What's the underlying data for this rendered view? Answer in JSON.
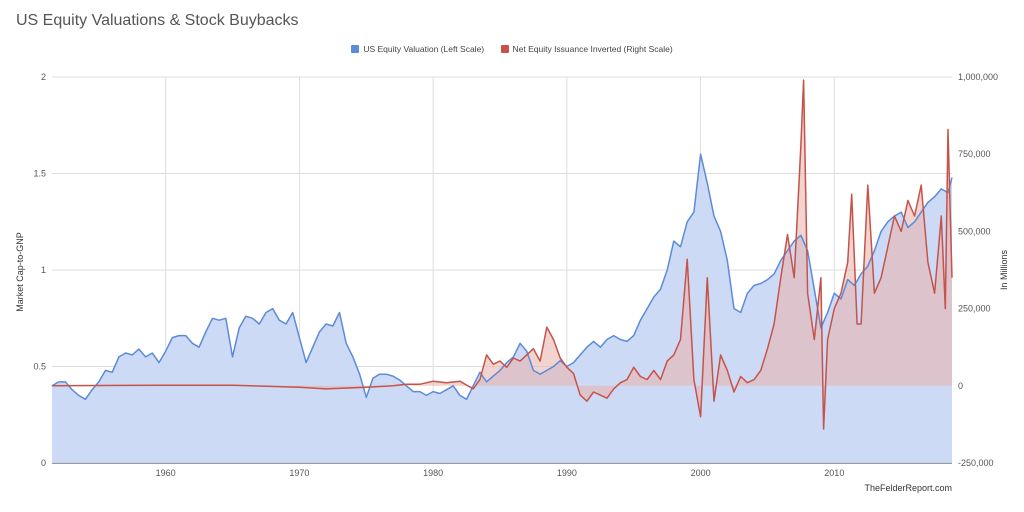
{
  "chart_data": {
    "type": "area",
    "title": "US Equity Valuations & Stock Buybacks",
    "ylabel": "Market Cap-to-GNP",
    "ylabel_right": "In Millions",
    "credit": "TheFelderReport.com",
    "legend_position": "top",
    "grid": true,
    "xlim": [
      1951.5,
      2018.8
    ],
    "ylim": [
      0,
      2
    ],
    "ylim_right": [
      -250000,
      1000000
    ],
    "x_ticks": [
      "1960",
      "1970",
      "1980",
      "1990",
      "2000",
      "2010"
    ],
    "y_ticks_left": [
      "0",
      "0.5",
      "1",
      "1.5",
      "2"
    ],
    "y_ticks_right": [
      "-250,000",
      "0",
      "250,000",
      "500,000",
      "750,000",
      "1,000,000"
    ],
    "series": [
      {
        "name": "US Equity Valuation (Left Scale)",
        "axis": "left",
        "color": "#5b8bd9",
        "fill": "#c9d8f4",
        "points": [
          [
            1951.5,
            0.4
          ],
          [
            1952,
            0.42
          ],
          [
            1952.5,
            0.42
          ],
          [
            1953,
            0.38
          ],
          [
            1953.5,
            0.35
          ],
          [
            1954,
            0.33
          ],
          [
            1954.5,
            0.38
          ],
          [
            1955,
            0.42
          ],
          [
            1955.5,
            0.48
          ],
          [
            1956,
            0.47
          ],
          [
            1956.5,
            0.55
          ],
          [
            1957,
            0.57
          ],
          [
            1957.5,
            0.56
          ],
          [
            1958,
            0.59
          ],
          [
            1958.5,
            0.55
          ],
          [
            1959,
            0.57
          ],
          [
            1959.5,
            0.52
          ],
          [
            1960,
            0.58
          ],
          [
            1960.5,
            0.65
          ],
          [
            1961,
            0.66
          ],
          [
            1961.5,
            0.66
          ],
          [
            1962,
            0.62
          ],
          [
            1962.5,
            0.6
          ],
          [
            1963,
            0.68
          ],
          [
            1963.5,
            0.75
          ],
          [
            1964,
            0.74
          ],
          [
            1964.5,
            0.75
          ],
          [
            1965,
            0.55
          ],
          [
            1965.5,
            0.7
          ],
          [
            1966,
            0.76
          ],
          [
            1966.5,
            0.75
          ],
          [
            1967,
            0.72
          ],
          [
            1967.5,
            0.78
          ],
          [
            1968,
            0.8
          ],
          [
            1968.5,
            0.74
          ],
          [
            1969,
            0.72
          ],
          [
            1969.5,
            0.78
          ],
          [
            1970,
            0.65
          ],
          [
            1970.5,
            0.52
          ],
          [
            1971,
            0.6
          ],
          [
            1971.5,
            0.68
          ],
          [
            1972,
            0.72
          ],
          [
            1972.5,
            0.71
          ],
          [
            1973,
            0.78
          ],
          [
            1973.5,
            0.62
          ],
          [
            1974,
            0.55
          ],
          [
            1974.5,
            0.46
          ],
          [
            1975,
            0.34
          ],
          [
            1975.5,
            0.44
          ],
          [
            1976,
            0.46
          ],
          [
            1976.5,
            0.46
          ],
          [
            1977,
            0.45
          ],
          [
            1977.5,
            0.43
          ],
          [
            1978,
            0.4
          ],
          [
            1978.5,
            0.37
          ],
          [
            1979,
            0.37
          ],
          [
            1979.5,
            0.35
          ],
          [
            1980,
            0.37
          ],
          [
            1980.5,
            0.36
          ],
          [
            1981,
            0.38
          ],
          [
            1981.5,
            0.4
          ],
          [
            1982,
            0.35
          ],
          [
            1982.5,
            0.33
          ],
          [
            1983,
            0.4
          ],
          [
            1983.5,
            0.47
          ],
          [
            1984,
            0.42
          ],
          [
            1984.5,
            0.45
          ],
          [
            1985,
            0.48
          ],
          [
            1985.5,
            0.52
          ],
          [
            1986,
            0.55
          ],
          [
            1986.5,
            0.62
          ],
          [
            1987,
            0.58
          ],
          [
            1987.5,
            0.48
          ],
          [
            1988,
            0.46
          ],
          [
            1988.5,
            0.48
          ],
          [
            1989,
            0.5
          ],
          [
            1989.5,
            0.53
          ],
          [
            1990,
            0.5
          ],
          [
            1990.5,
            0.52
          ],
          [
            1991,
            0.56
          ],
          [
            1991.5,
            0.6
          ],
          [
            1992,
            0.63
          ],
          [
            1992.5,
            0.6
          ],
          [
            1993,
            0.64
          ],
          [
            1993.5,
            0.66
          ],
          [
            1994,
            0.64
          ],
          [
            1994.5,
            0.63
          ],
          [
            1995,
            0.66
          ],
          [
            1995.5,
            0.74
          ],
          [
            1996,
            0.8
          ],
          [
            1996.5,
            0.86
          ],
          [
            1997,
            0.9
          ],
          [
            1997.5,
            1.0
          ],
          [
            1998,
            1.15
          ],
          [
            1998.5,
            1.12
          ],
          [
            1999,
            1.25
          ],
          [
            1999.5,
            1.3
          ],
          [
            2000,
            1.6
          ],
          [
            2000.5,
            1.45
          ],
          [
            2001,
            1.28
          ],
          [
            2001.5,
            1.2
          ],
          [
            2002,
            1.05
          ],
          [
            2002.5,
            0.8
          ],
          [
            2003,
            0.78
          ],
          [
            2003.5,
            0.88
          ],
          [
            2004,
            0.92
          ],
          [
            2004.5,
            0.93
          ],
          [
            2005,
            0.95
          ],
          [
            2005.5,
            0.98
          ],
          [
            2006,
            1.05
          ],
          [
            2006.5,
            1.1
          ],
          [
            2007,
            1.15
          ],
          [
            2007.5,
            1.18
          ],
          [
            2008,
            1.1
          ],
          [
            2008.5,
            0.9
          ],
          [
            2009,
            0.7
          ],
          [
            2009.5,
            0.78
          ],
          [
            2010,
            0.88
          ],
          [
            2010.5,
            0.85
          ],
          [
            2011,
            0.95
          ],
          [
            2011.5,
            0.92
          ],
          [
            2012,
            0.98
          ],
          [
            2012.5,
            1.02
          ],
          [
            2013,
            1.1
          ],
          [
            2013.5,
            1.2
          ],
          [
            2014,
            1.25
          ],
          [
            2014.5,
            1.28
          ],
          [
            2015,
            1.3
          ],
          [
            2015.5,
            1.22
          ],
          [
            2016,
            1.25
          ],
          [
            2016.5,
            1.3
          ],
          [
            2017,
            1.35
          ],
          [
            2017.5,
            1.38
          ],
          [
            2018,
            1.42
          ],
          [
            2018.5,
            1.4
          ],
          [
            2018.8,
            1.48
          ]
        ]
      },
      {
        "name": "Net Equity Issuance Inverted (Right Scale)",
        "axis": "right",
        "color": "#c6534a",
        "fill": "#e8b5b0",
        "points": [
          [
            1951.5,
            0
          ],
          [
            1955,
            1000
          ],
          [
            1960,
            2000
          ],
          [
            1965,
            2000
          ],
          [
            1970,
            -5000
          ],
          [
            1972,
            -10000
          ],
          [
            1975,
            -5000
          ],
          [
            1977,
            0
          ],
          [
            1978,
            5000
          ],
          [
            1979,
            5000
          ],
          [
            1980,
            15000
          ],
          [
            1981,
            10000
          ],
          [
            1982,
            15000
          ],
          [
            1983,
            -10000
          ],
          [
            1983.5,
            20000
          ],
          [
            1984,
            100000
          ],
          [
            1984.5,
            70000
          ],
          [
            1985,
            80000
          ],
          [
            1985.5,
            60000
          ],
          [
            1986,
            90000
          ],
          [
            1986.5,
            80000
          ],
          [
            1987,
            100000
          ],
          [
            1987.5,
            120000
          ],
          [
            1988,
            80000
          ],
          [
            1988.5,
            190000
          ],
          [
            1989,
            150000
          ],
          [
            1989.5,
            90000
          ],
          [
            1990,
            60000
          ],
          [
            1990.5,
            40000
          ],
          [
            1991,
            -30000
          ],
          [
            1991.5,
            -50000
          ],
          [
            1992,
            -20000
          ],
          [
            1992.5,
            -30000
          ],
          [
            1993,
            -40000
          ],
          [
            1993.5,
            -10000
          ],
          [
            1994,
            10000
          ],
          [
            1994.5,
            20000
          ],
          [
            1995,
            60000
          ],
          [
            1995.5,
            30000
          ],
          [
            1996,
            20000
          ],
          [
            1996.5,
            50000
          ],
          [
            1997,
            20000
          ],
          [
            1997.5,
            80000
          ],
          [
            1998,
            100000
          ],
          [
            1998.5,
            150000
          ],
          [
            1999,
            410000
          ],
          [
            1999.5,
            20000
          ],
          [
            2000,
            -100000
          ],
          [
            2000.5,
            350000
          ],
          [
            2001,
            -50000
          ],
          [
            2001.5,
            100000
          ],
          [
            2002,
            50000
          ],
          [
            2002.5,
            -20000
          ],
          [
            2003,
            30000
          ],
          [
            2003.5,
            10000
          ],
          [
            2004,
            20000
          ],
          [
            2004.5,
            50000
          ],
          [
            2005,
            120000
          ],
          [
            2005.5,
            200000
          ],
          [
            2006,
            350000
          ],
          [
            2006.5,
            490000
          ],
          [
            2007,
            350000
          ],
          [
            2007.5,
            780000
          ],
          [
            2007.7,
            990000
          ],
          [
            2008,
            300000
          ],
          [
            2008.5,
            150000
          ],
          [
            2009,
            350000
          ],
          [
            2009.2,
            -140000
          ],
          [
            2009.5,
            150000
          ],
          [
            2010,
            250000
          ],
          [
            2010.5,
            300000
          ],
          [
            2011,
            400000
          ],
          [
            2011.3,
            620000
          ],
          [
            2011.7,
            200000
          ],
          [
            2012,
            200000
          ],
          [
            2012.5,
            650000
          ],
          [
            2013,
            300000
          ],
          [
            2013.5,
            350000
          ],
          [
            2014,
            450000
          ],
          [
            2014.5,
            550000
          ],
          [
            2015,
            500000
          ],
          [
            2015.5,
            600000
          ],
          [
            2016,
            550000
          ],
          [
            2016.5,
            650000
          ],
          [
            2017,
            400000
          ],
          [
            2017.5,
            300000
          ],
          [
            2018,
            550000
          ],
          [
            2018.3,
            250000
          ],
          [
            2018.5,
            830000
          ],
          [
            2018.8,
            350000
          ]
        ]
      }
    ]
  }
}
